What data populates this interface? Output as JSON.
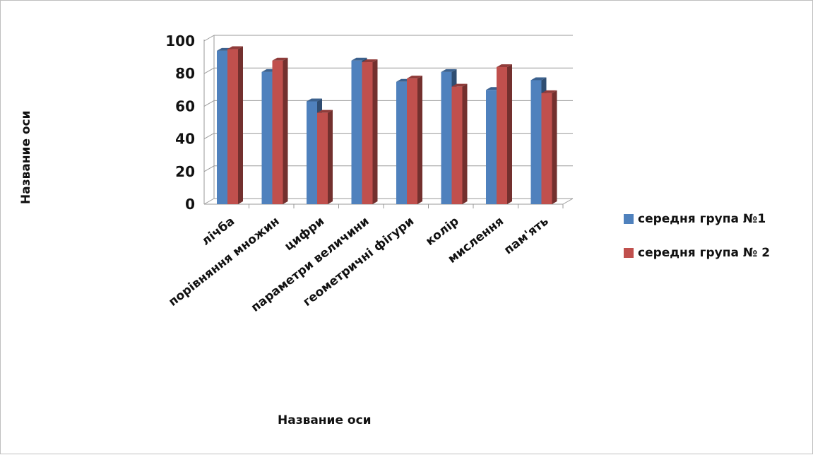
{
  "chart_data": {
    "type": "bar",
    "categories": [
      "лічба",
      "порівняння множин",
      "цифри",
      "параметри величини",
      "геометричні фігури",
      "колір",
      "мислення",
      "пам'ять"
    ],
    "series": [
      {
        "name": "середня група №1",
        "values": [
          94,
          81,
          63,
          88,
          75,
          81,
          70,
          76
        ],
        "color": "#4f81bd"
      },
      {
        "name": "середня група № 2",
        "values": [
          95,
          88,
          56,
          87,
          77,
          72,
          84,
          68
        ],
        "color": "#c0504d"
      }
    ],
    "y_ticks": [
      "0",
      "20",
      "40",
      "60",
      "80",
      "100"
    ],
    "ylim": [
      0,
      100
    ],
    "xlabel": "Название оси",
    "ylabel": "Название оси",
    "grid": true,
    "legend_position": "right"
  }
}
